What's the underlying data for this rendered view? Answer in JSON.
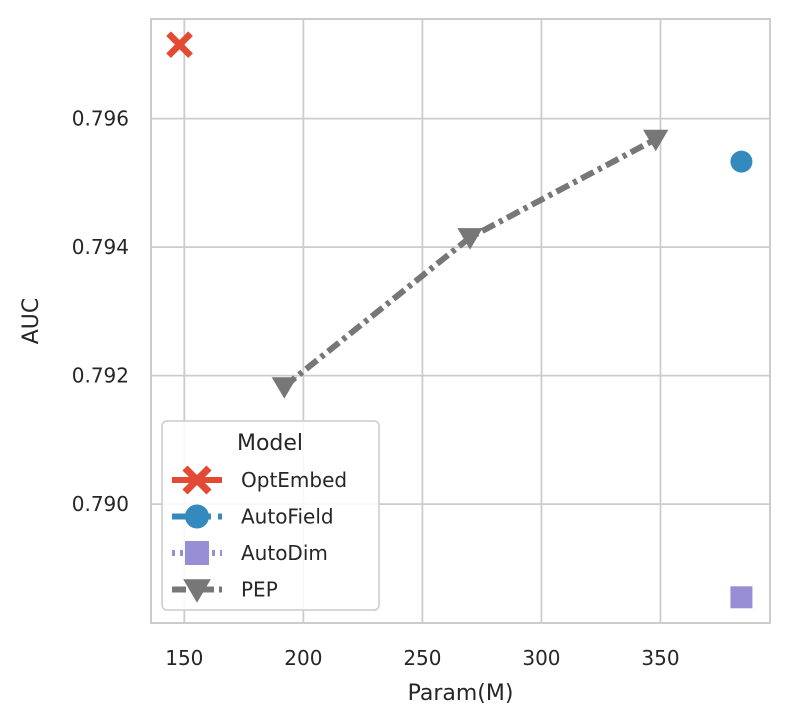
{
  "chart_data": {
    "type": "scatter",
    "xlabel": "Param(M)",
    "ylabel": "AUC",
    "xlim": [
      136,
      396
    ],
    "ylim": [
      0.78815,
      0.79755
    ],
    "xticks": [
      150,
      200,
      250,
      300,
      350
    ],
    "xtick_labels": [
      "150",
      "200",
      "250",
      "300",
      "350"
    ],
    "yticks": [
      0.79,
      0.792,
      0.794,
      0.796
    ],
    "ytick_labels": [
      "0.790",
      "0.792",
      "0.794",
      "0.796"
    ],
    "grid": true,
    "legend": {
      "title": "Model",
      "placement": "lower-left"
    },
    "series": [
      {
        "name": "OptEmbed",
        "color": "#E24A33",
        "marker": "x",
        "linestyle": "solid",
        "points": [
          {
            "x": 148,
            "y": 0.79715
          }
        ]
      },
      {
        "name": "AutoField",
        "color": "#348ABD",
        "marker": "circle",
        "linestyle": "dashed",
        "points": [
          {
            "x": 384,
            "y": 0.79533
          }
        ]
      },
      {
        "name": "AutoDim",
        "color": "#988ED5",
        "marker": "square",
        "linestyle": "dotted",
        "points": [
          {
            "x": 384,
            "y": 0.78855
          }
        ]
      },
      {
        "name": "PEP",
        "color": "#777777",
        "marker": "triangle-down",
        "linestyle": "dashdot",
        "points": [
          {
            "x": 192,
            "y": 0.79183
          },
          {
            "x": 270,
            "y": 0.79415
          },
          {
            "x": 348,
            "y": 0.79568
          }
        ]
      }
    ]
  }
}
